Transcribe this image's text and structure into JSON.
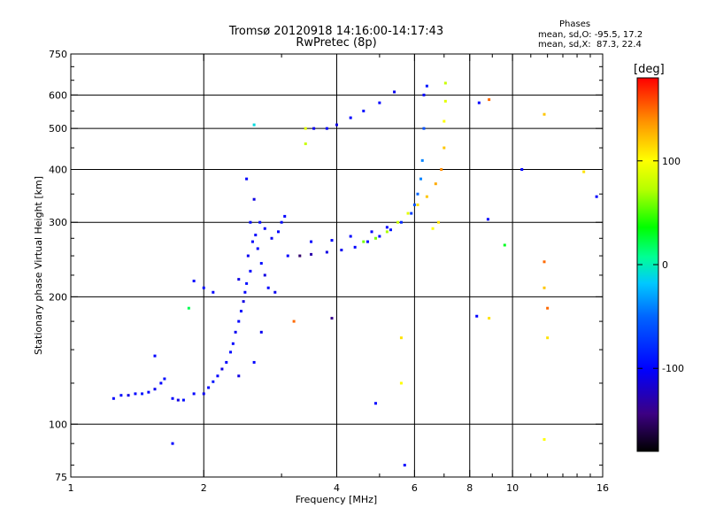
{
  "chart_data": {
    "type": "scatter",
    "title": "Tromsø 20120918 14:16:00-14:17:43",
    "subtitle": "RwPretec (8p)",
    "xlabel": "Frequency [MHz]",
    "ylabel": "Stationary phase Virtual Height [km]",
    "x_scale": "log",
    "y_scale": "log",
    "xlim": [
      1,
      16
    ],
    "ylim": [
      75,
      750
    ],
    "x_ticks": [
      1,
      2,
      4,
      6,
      8,
      10,
      16
    ],
    "x_tick_labels": [
      "1",
      "2",
      "4",
      "6",
      "8",
      "10",
      "16"
    ],
    "y_ticks": [
      75,
      100,
      200,
      300,
      400,
      500,
      600,
      750
    ],
    "y_tick_labels": [
      "75",
      "100",
      "200",
      "300",
      "400",
      "500",
      "600",
      "750"
    ],
    "grid": true,
    "stats": {
      "heading": "Phases",
      "line1": "mean, sd,O: -95.5, 17.2",
      "line2": "mean, sd,X:  87.3, 22.4"
    },
    "colorbar": {
      "label": "[deg]",
      "ticks": [
        100,
        0,
        -100
      ],
      "tick_labels": [
        "100",
        "0",
        "-100"
      ],
      "range": [
        -180,
        180
      ]
    },
    "series": [
      {
        "values": [
          [
            1.25,
            115,
            -100
          ],
          [
            1.3,
            117,
            -95
          ],
          [
            1.35,
            117,
            -110
          ],
          [
            1.4,
            118,
            -100
          ],
          [
            1.45,
            118,
            -90
          ],
          [
            1.5,
            119,
            -100
          ],
          [
            1.55,
            121,
            -105
          ],
          [
            1.6,
            125,
            -100
          ],
          [
            1.63,
            128,
            -95
          ],
          [
            1.55,
            145,
            -100
          ],
          [
            1.7,
            115,
            -100
          ],
          [
            1.75,
            114,
            -110
          ],
          [
            1.8,
            114,
            -95
          ],
          [
            1.9,
            118,
            -100
          ],
          [
            2.0,
            118,
            -105
          ],
          [
            2.05,
            122,
            -100
          ],
          [
            2.1,
            126,
            -90
          ],
          [
            2.15,
            130,
            -100
          ],
          [
            2.2,
            135,
            -110
          ],
          [
            2.25,
            140,
            -100
          ],
          [
            2.3,
            148,
            -95
          ],
          [
            2.33,
            155,
            -100
          ],
          [
            2.36,
            165,
            -105
          ],
          [
            2.4,
            175,
            -100
          ],
          [
            2.43,
            185,
            -95
          ],
          [
            2.46,
            195,
            -110
          ],
          [
            2.48,
            205,
            -100
          ],
          [
            2.5,
            215,
            -95
          ],
          [
            2.55,
            230,
            -100
          ],
          [
            2.52,
            250,
            -105
          ],
          [
            2.58,
            270,
            -100
          ],
          [
            2.55,
            300,
            -95
          ],
          [
            2.6,
            340,
            -110
          ],
          [
            2.5,
            380,
            -100
          ],
          [
            2.65,
            260,
            -100
          ],
          [
            2.7,
            240,
            -95
          ],
          [
            2.75,
            225,
            -110
          ],
          [
            2.8,
            210,
            -100
          ],
          [
            2.9,
            205,
            -105
          ],
          [
            2.1,
            205,
            -100
          ],
          [
            2.0,
            210,
            -95
          ],
          [
            1.9,
            218,
            -100
          ],
          [
            2.4,
            220,
            -110
          ],
          [
            2.62,
            280,
            -100
          ],
          [
            2.68,
            300,
            -95
          ],
          [
            2.75,
            290,
            -100
          ],
          [
            2.85,
            275,
            -105
          ],
          [
            2.95,
            285,
            -100
          ],
          [
            3.0,
            300,
            -95
          ],
          [
            3.05,
            310,
            -100
          ],
          [
            2.7,
            165,
            -105
          ],
          [
            2.6,
            140,
            -100
          ],
          [
            2.4,
            130,
            -110
          ],
          [
            3.1,
            250,
            -100
          ],
          [
            3.3,
            250,
            -150
          ],
          [
            3.5,
            252,
            -130
          ],
          [
            3.8,
            255,
            -110
          ],
          [
            4.1,
            258,
            -105
          ],
          [
            4.4,
            262,
            -100
          ],
          [
            4.7,
            270,
            -100
          ],
          [
            5.0,
            278,
            -95
          ],
          [
            5.3,
            288,
            -90
          ],
          [
            5.6,
            300,
            -80
          ],
          [
            5.9,
            315,
            -70
          ],
          [
            6.0,
            330,
            -60
          ],
          [
            6.1,
            350,
            -50
          ],
          [
            6.2,
            380,
            -40
          ],
          [
            6.25,
            420,
            -40
          ],
          [
            6.3,
            500,
            -60
          ],
          [
            6.3,
            600,
            -100
          ],
          [
            6.4,
            630,
            -90
          ],
          [
            3.5,
            270,
            -100
          ],
          [
            3.9,
            272,
            -100
          ],
          [
            4.3,
            278,
            -100
          ],
          [
            4.8,
            285,
            -100
          ],
          [
            5.2,
            292,
            -100
          ],
          [
            4.6,
            270,
            60
          ],
          [
            4.9,
            275,
            60
          ],
          [
            5.2,
            285,
            70
          ],
          [
            5.5,
            300,
            80
          ],
          [
            5.8,
            315,
            90
          ],
          [
            6.1,
            330,
            110
          ],
          [
            6.4,
            345,
            120
          ],
          [
            6.7,
            370,
            130
          ],
          [
            6.9,
            400,
            140
          ],
          [
            7.0,
            450,
            120
          ],
          [
            7.0,
            520,
            100
          ],
          [
            7.05,
            580,
            90
          ],
          [
            7.05,
            640,
            80
          ],
          [
            6.8,
            300,
            110
          ],
          [
            6.6,
            290,
            100
          ],
          [
            3.8,
            500,
            -100
          ],
          [
            4.0,
            510,
            -110
          ],
          [
            4.3,
            530,
            -100
          ],
          [
            4.6,
            550,
            -95
          ],
          [
            5.0,
            575,
            -100
          ],
          [
            5.4,
            610,
            -105
          ],
          [
            3.4,
            500,
            90
          ],
          [
            3.4,
            460,
            80
          ],
          [
            3.55,
            500,
            -105
          ],
          [
            8.4,
            575,
            -100
          ],
          [
            8.85,
            585,
            150
          ],
          [
            10.5,
            400,
            -100
          ],
          [
            11.8,
            540,
            120
          ],
          [
            14.5,
            395,
            110
          ],
          [
            15.5,
            345,
            -100
          ],
          [
            8.8,
            305,
            -100
          ],
          [
            9.6,
            265,
            30
          ],
          [
            11.8,
            242,
            150
          ],
          [
            11.8,
            210,
            120
          ],
          [
            12.0,
            188,
            150
          ],
          [
            12.0,
            160,
            110
          ],
          [
            11.8,
            92,
            100
          ],
          [
            8.85,
            178,
            110
          ],
          [
            8.3,
            180,
            -100
          ],
          [
            5.6,
            160,
            110
          ],
          [
            5.6,
            125,
            100
          ],
          [
            3.2,
            175,
            150
          ],
          [
            3.9,
            178,
            -140
          ],
          [
            4.9,
            112,
            -100
          ],
          [
            1.85,
            188,
            20
          ],
          [
            2.6,
            510,
            -10
          ],
          [
            1.7,
            90,
            -100
          ],
          [
            5.7,
            80,
            -100
          ]
        ]
      }
    ]
  }
}
